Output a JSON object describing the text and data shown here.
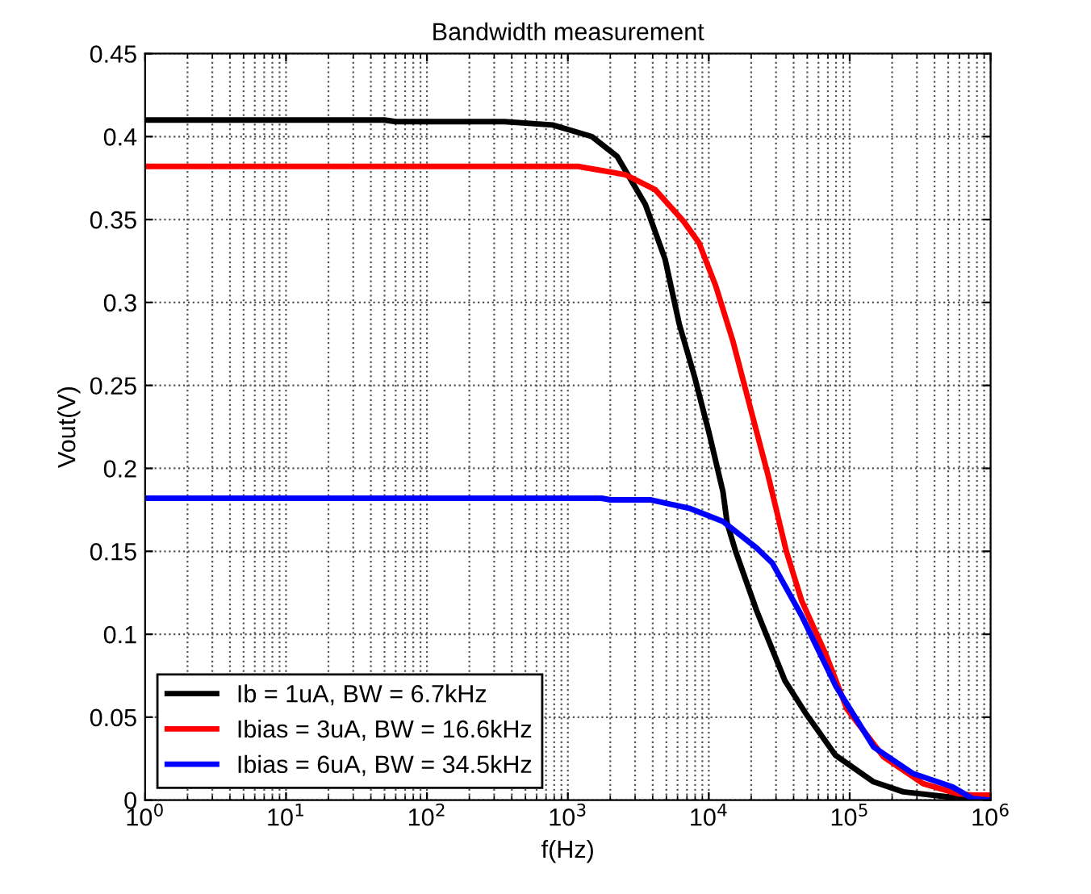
{
  "chart_data": {
    "type": "line",
    "title": "Bandwidth measurement",
    "xlabel": "f(Hz)",
    "ylabel": "Vout(V)",
    "log": "x",
    "xlim": [
      1,
      1000000
    ],
    "xticks": [
      {
        "value": 1,
        "label": "10$^{0}$"
      },
      {
        "value": 10,
        "label": "10$^{1}$"
      },
      {
        "value": 100,
        "label": "10$^{2}$"
      },
      {
        "value": 1000,
        "label": "10$^{3}$"
      },
      {
        "value": 10000,
        "label": "10$^{4}$"
      },
      {
        "value": 100000,
        "label": "10$^{5}$"
      },
      {
        "value": 1000000,
        "label": "10$^{6}$"
      }
    ],
    "ylim": [
      0,
      0.45
    ],
    "yticks": [
      0,
      0.05,
      0.1,
      0.15,
      0.2,
      0.25,
      0.3,
      0.35,
      0.4,
      0.45
    ],
    "grid": true,
    "legend": "bottom left",
    "line_style": "solid",
    "marker": "none",
    "series": [
      {
        "name": "Ib = 1uA, BW = 6.7kHz",
        "color": "#000000",
        "x": [
          1,
          50,
          60,
          355,
          780,
          1480,
          2240,
          3550,
          4900,
          6170,
          7940,
          10000,
          12600,
          13500,
          15500,
          21900,
          34700,
          49000,
          79400,
          148000,
          240000,
          490000,
          794000,
          1000000
        ],
        "values": [
          0.41,
          0.41,
          0.409,
          0.409,
          0.407,
          0.4,
          0.388,
          0.359,
          0.326,
          0.287,
          0.255,
          0.222,
          0.186,
          0.167,
          0.15,
          0.114,
          0.072,
          0.052,
          0.027,
          0.011,
          0.005,
          0.002,
          0.0,
          0.0
        ]
      },
      {
        "name": "Ibias = 3uA, BW = 16.6kHz",
        "color": "#ff0000",
        "x": [
          1,
          1180,
          2570,
          4170,
          6610,
          8510,
          11200,
          14800,
          19100,
          26300,
          35500,
          45700,
          67600,
          95500,
          174000,
          331000,
          575000,
          741000,
          1000000
        ],
        "values": [
          0.382,
          0.382,
          0.377,
          0.368,
          0.349,
          0.336,
          0.31,
          0.277,
          0.241,
          0.196,
          0.15,
          0.12,
          0.088,
          0.055,
          0.026,
          0.01,
          0.004,
          0.003,
          0.003
        ]
      },
      {
        "name": "Ibias = 6uA, BW = 34.5kHz",
        "color": "#0000ff",
        "x": [
          1,
          1740,
          2000,
          3890,
          7240,
          12600,
          21900,
          28200,
          45700,
          79400,
          148000,
          282000,
          537000,
          741000,
          1000000
        ],
        "values": [
          0.182,
          0.182,
          0.181,
          0.181,
          0.176,
          0.168,
          0.152,
          0.143,
          0.111,
          0.069,
          0.032,
          0.016,
          0.008,
          0.001,
          0.0
        ]
      }
    ]
  }
}
